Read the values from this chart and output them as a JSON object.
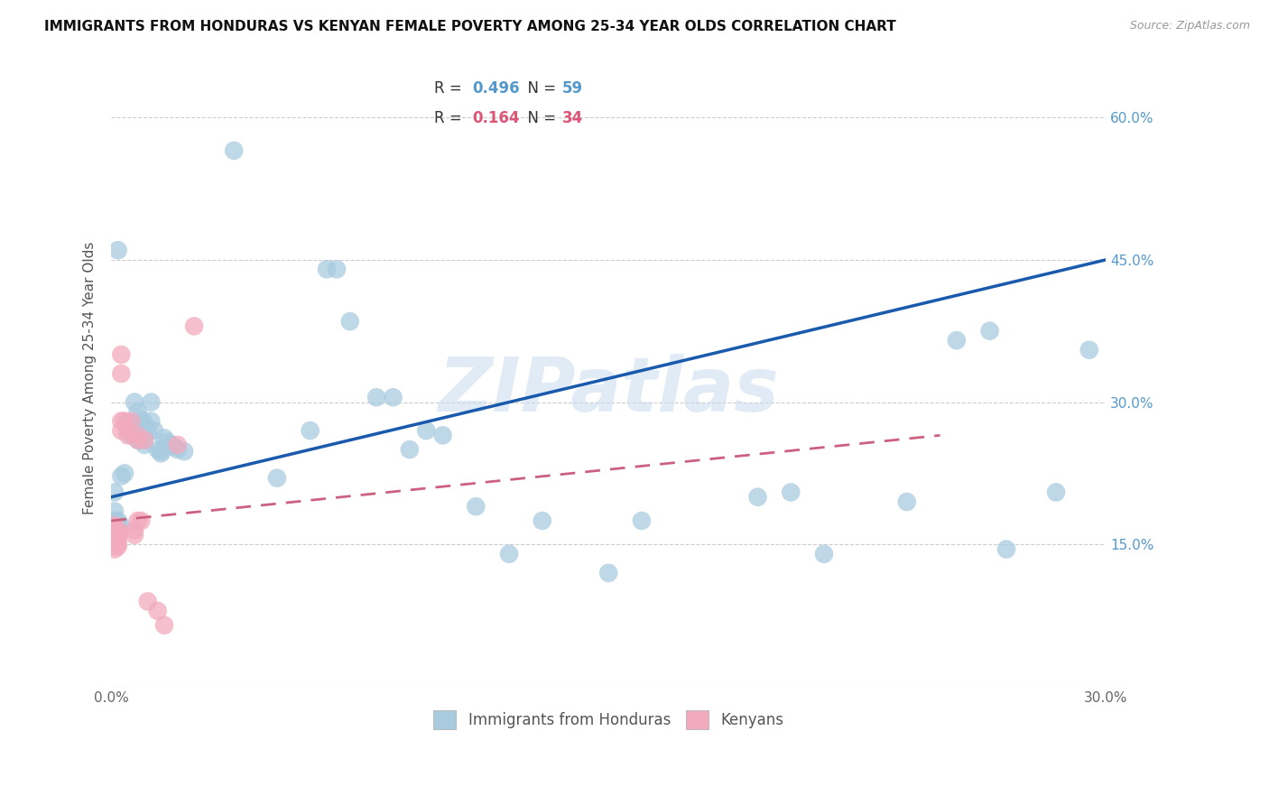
{
  "title": "IMMIGRANTS FROM HONDURAS VS KENYAN FEMALE POVERTY AMONG 25-34 YEAR OLDS CORRELATION CHART",
  "source": "Source: ZipAtlas.com",
  "ylabel": "Female Poverty Among 25-34 Year Olds",
  "xlim": [
    0.0,
    0.3
  ],
  "ylim": [
    0.0,
    0.65
  ],
  "x_ticks": [
    0.0,
    0.05,
    0.1,
    0.15,
    0.2,
    0.25,
    0.3
  ],
  "x_tick_labels": [
    "0.0%",
    "",
    "",
    "",
    "",
    "",
    "30.0%"
  ],
  "y_ticks": [
    0.0,
    0.15,
    0.3,
    0.45,
    0.6
  ],
  "y_tick_right_labels": [
    "",
    "15.0%",
    "30.0%",
    "45.0%",
    "60.0%"
  ],
  "series1_name": "Immigrants from Honduras",
  "series2_name": "Kenyans",
  "watermark": "ZIPatlas",
  "r1": 0.496,
  "n1": 59,
  "r2": 0.164,
  "n2": 34,
  "blue_color": "#A8CBE0",
  "pink_color": "#F2AABE",
  "line_blue": "#1A5AAD",
  "line_pink": "#CC6080",
  "blue_x": [
    0.037,
    0.002,
    0.001,
    0.001,
    0.001,
    0.002,
    0.002,
    0.003,
    0.003,
    0.004,
    0.005,
    0.005,
    0.006,
    0.007,
    0.007,
    0.008,
    0.008,
    0.009,
    0.009,
    0.01,
    0.01,
    0.01,
    0.011,
    0.012,
    0.012,
    0.013,
    0.014,
    0.015,
    0.015,
    0.016,
    0.017,
    0.018,
    0.019,
    0.02,
    0.022,
    0.05,
    0.06,
    0.065,
    0.068,
    0.072,
    0.08,
    0.085,
    0.09,
    0.095,
    0.1,
    0.11,
    0.12,
    0.13,
    0.15,
    0.16,
    0.195,
    0.205,
    0.215,
    0.24,
    0.255,
    0.265,
    0.27,
    0.285,
    0.295
  ],
  "blue_y": [
    0.565,
    0.46,
    0.205,
    0.185,
    0.175,
    0.175,
    0.172,
    0.17,
    0.222,
    0.225,
    0.278,
    0.272,
    0.265,
    0.3,
    0.265,
    0.29,
    0.26,
    0.282,
    0.26,
    0.278,
    0.268,
    0.255,
    0.268,
    0.3,
    0.28,
    0.27,
    0.25,
    0.248,
    0.246,
    0.262,
    0.258,
    0.255,
    0.253,
    0.25,
    0.248,
    0.22,
    0.27,
    0.44,
    0.44,
    0.385,
    0.305,
    0.305,
    0.25,
    0.27,
    0.265,
    0.19,
    0.14,
    0.175,
    0.12,
    0.175,
    0.2,
    0.205,
    0.14,
    0.195,
    0.365,
    0.375,
    0.145,
    0.205,
    0.355
  ],
  "pink_x": [
    0.001,
    0.001,
    0.001,
    0.001,
    0.001,
    0.001,
    0.001,
    0.001,
    0.002,
    0.002,
    0.002,
    0.002,
    0.002,
    0.002,
    0.003,
    0.003,
    0.003,
    0.003,
    0.004,
    0.005,
    0.005,
    0.006,
    0.007,
    0.007,
    0.008,
    0.008,
    0.008,
    0.009,
    0.01,
    0.011,
    0.014,
    0.016,
    0.02,
    0.025
  ],
  "pink_y": [
    0.17,
    0.168,
    0.165,
    0.163,
    0.155,
    0.15,
    0.148,
    0.145,
    0.165,
    0.163,
    0.16,
    0.155,
    0.15,
    0.148,
    0.35,
    0.33,
    0.28,
    0.27,
    0.28,
    0.27,
    0.265,
    0.28,
    0.165,
    0.16,
    0.265,
    0.26,
    0.175,
    0.175,
    0.26,
    0.09,
    0.08,
    0.065,
    0.255,
    0.38
  ]
}
